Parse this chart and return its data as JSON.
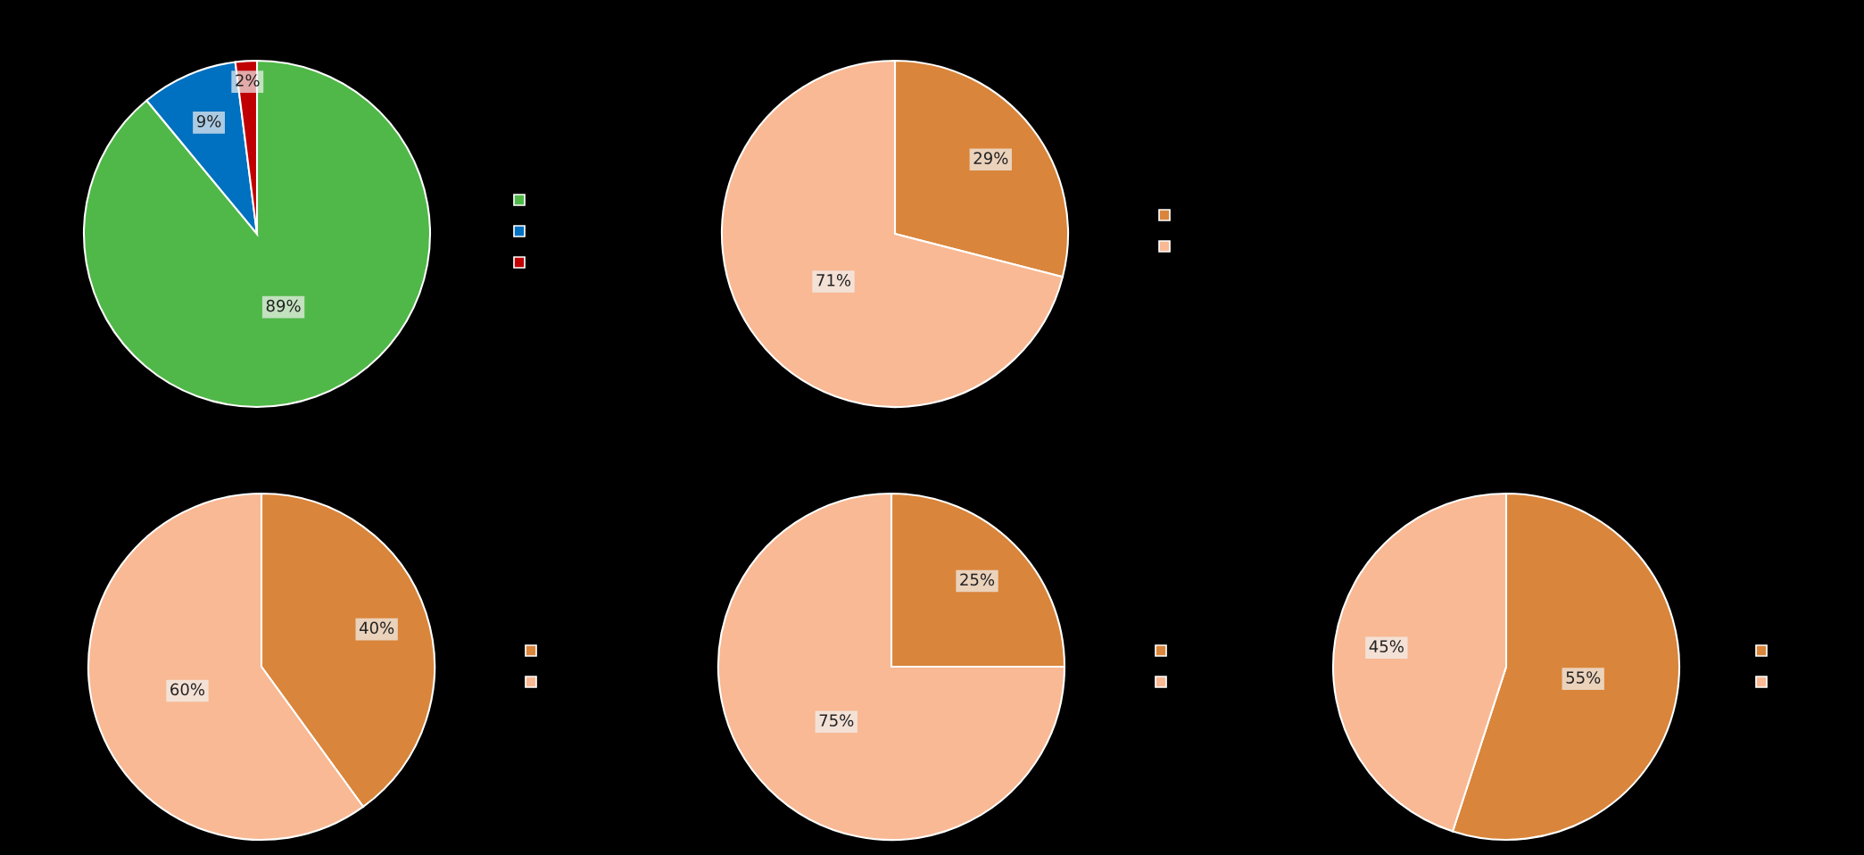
{
  "chart_data": [
    {
      "type": "pie",
      "categories": [
        null,
        null,
        null
      ],
      "values": [
        89,
        9,
        2
      ],
      "colors": [
        "#50b848",
        "#0070c0",
        "#c00000"
      ],
      "value_labels": [
        "89%",
        "9%",
        "2%"
      ]
    },
    {
      "type": "pie",
      "categories": [
        null,
        null
      ],
      "values": [
        29,
        71
      ],
      "colors": [
        "#d9853b",
        "#f8b994"
      ],
      "value_labels": [
        "29%",
        "71%"
      ]
    },
    {
      "type": "pie",
      "categories": [
        null,
        null
      ],
      "values": [
        40,
        60
      ],
      "colors": [
        "#d9853b",
        "#f8b994"
      ],
      "value_labels": [
        "40%",
        "60%"
      ]
    },
    {
      "type": "pie",
      "categories": [
        null,
        null
      ],
      "values": [
        25,
        75
      ],
      "colors": [
        "#d9853b",
        "#f8b994"
      ],
      "value_labels": [
        "25%",
        "75%"
      ]
    },
    {
      "type": "pie",
      "categories": [
        null,
        null
      ],
      "values": [
        55,
        45
      ],
      "colors": [
        "#d9853b",
        "#f8b994"
      ],
      "value_labels": [
        "55%",
        "45%"
      ]
    }
  ]
}
